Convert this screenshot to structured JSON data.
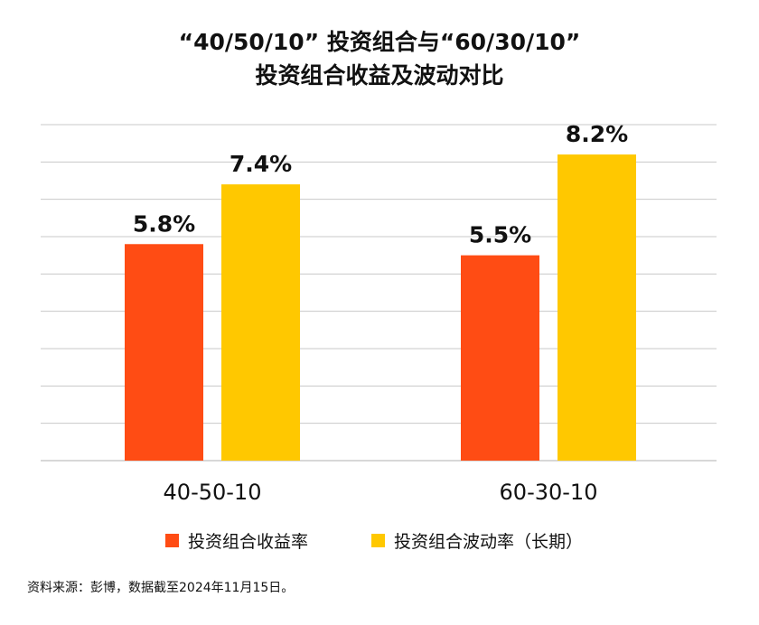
{
  "chart_data": {
    "type": "bar",
    "title_lines": [
      "“40/50/10” 投资组合与“60/30/10”",
      "投资组合收益及波动对比"
    ],
    "categories": [
      "40-50-10",
      "60-30-10"
    ],
    "series": [
      {
        "name": "投资组合收益率",
        "color": "#FF4C14",
        "values": [
          5.8,
          5.5
        ],
        "labels": [
          "5.8%",
          "5.5%"
        ]
      },
      {
        "name": "投资组合波动率（长期）",
        "color": "#FFC800",
        "values": [
          7.4,
          8.2
        ],
        "labels": [
          "7.4%",
          "8.2%"
        ]
      }
    ],
    "ylim": [
      0,
      9
    ],
    "gridlines": true,
    "y_tick_labels_visible": false,
    "legend_position": "bottom"
  },
  "source": "资料来源：彭博，数据截至2024年11月15日。"
}
